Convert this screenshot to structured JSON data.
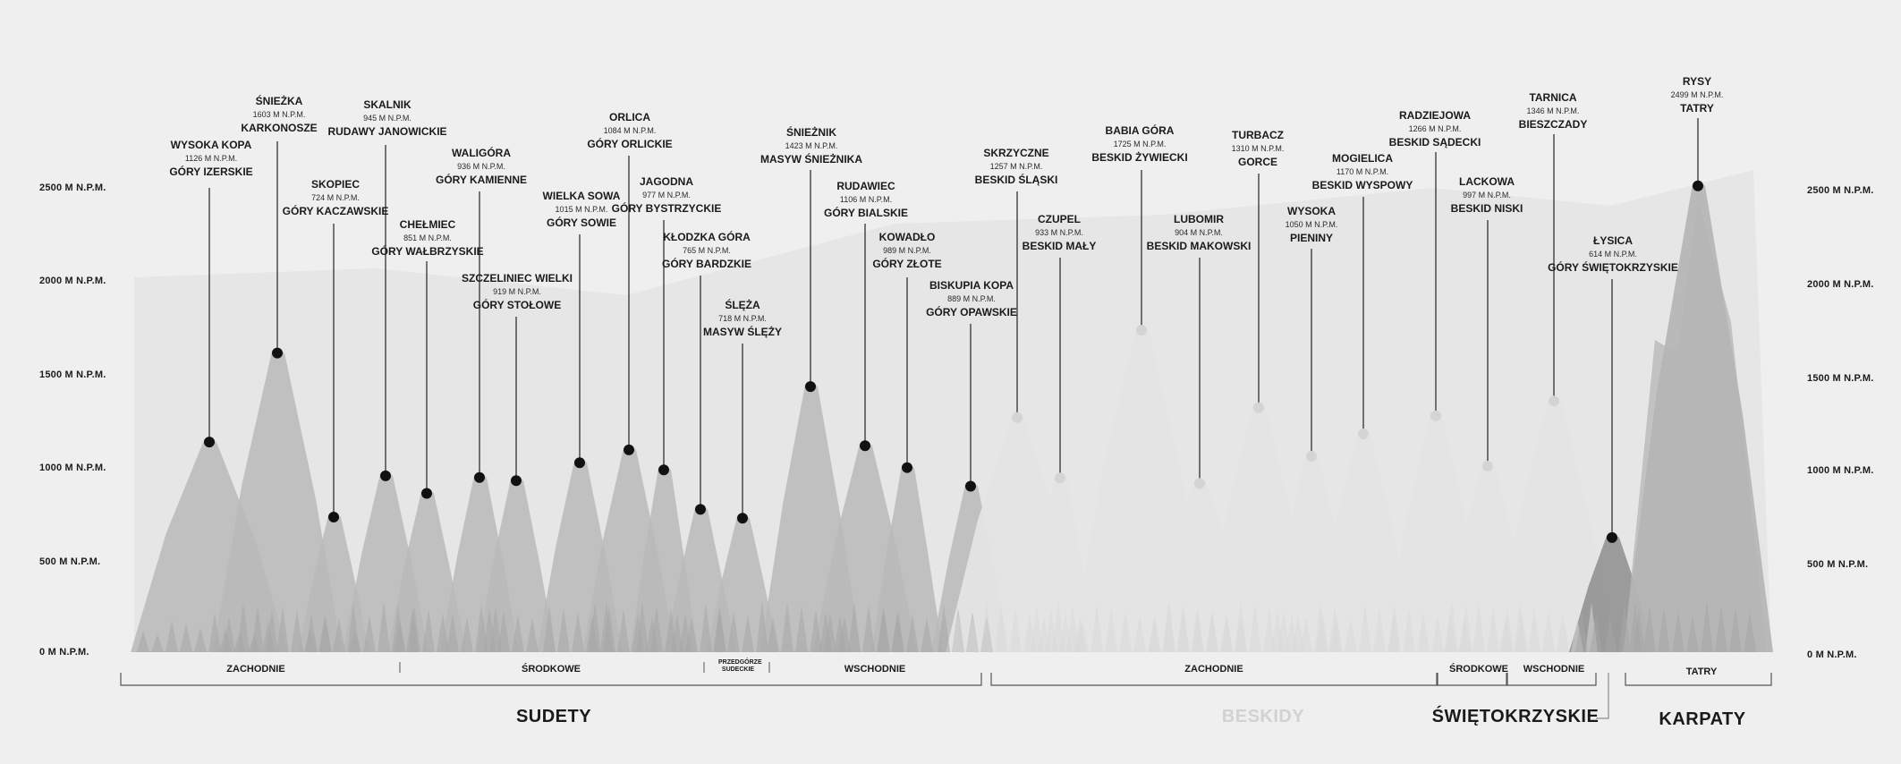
{
  "axis": {
    "labels": [
      "0 M N.P.M.",
      "500 M N.P.M.",
      "1000 M N.P.M.",
      "1500 M N.P.M.",
      "2000 M N.P.M.",
      "2500 M N.P.M."
    ],
    "values": [
      0,
      500,
      1000,
      1500,
      2000,
      2500
    ]
  },
  "peaks": [
    {
      "name": "WYSOKA KOPA",
      "elev": "1126 M N.P.M.",
      "range": "GÓRY IZERSKIE",
      "value": 1126,
      "region": "sudety"
    },
    {
      "name": "ŚNIEŻKA",
      "elev": "1603 M N.P.M.",
      "range": "KARKONOSZE",
      "value": 1603,
      "region": "sudety"
    },
    {
      "name": "SKOPIEC",
      "elev": "724 M N.P.M.",
      "range": "GÓRY KACZAWSKIE",
      "value": 724,
      "region": "sudety"
    },
    {
      "name": "SKALNIK",
      "elev": "945 M N.P.M.",
      "range": "RUDAWY JANOWICKIE",
      "value": 945,
      "region": "sudety"
    },
    {
      "name": "CHEŁMIEC",
      "elev": "851 M N.P.M.",
      "range": "GÓRY WAŁBRZYSKIE",
      "value": 851,
      "region": "sudety"
    },
    {
      "name": "WALIGÓRA",
      "elev": "936 M N.P.M.",
      "range": "GÓRY KAMIENNE",
      "value": 936,
      "region": "sudety"
    },
    {
      "name": "SZCZELINIEC WIELKI",
      "elev": "919 M N.P.M.",
      "range": "GÓRY STOŁOWE",
      "value": 919,
      "region": "sudety"
    },
    {
      "name": "WIELKA SOWA",
      "elev": "1015 M N.P.M.",
      "range": "GÓRY SOWIE",
      "value": 1015,
      "region": "sudety"
    },
    {
      "name": "ORLICA",
      "elev": "1084 M N.P.M.",
      "range": "GÓRY ORLICKIE",
      "value": 1084,
      "region": "sudety"
    },
    {
      "name": "JAGODNA",
      "elev": "977 M N.P.M.",
      "range": "GÓRY BYSTRZYCKIE",
      "value": 977,
      "region": "sudety"
    },
    {
      "name": "KŁODZKA GÓRA",
      "elev": "765 M N.P.M.",
      "range": "GÓRY BARDZKIE",
      "value": 765,
      "region": "sudety"
    },
    {
      "name": "ŚLĘŻA",
      "elev": "718 M N.P.M.",
      "range": "MASYW ŚLĘŻY",
      "value": 718,
      "region": "sudety"
    },
    {
      "name": "ŚNIEŻNIK",
      "elev": "1423 M N.P.M.",
      "range": "MASYW ŚNIEŻNIKA",
      "value": 1423,
      "region": "sudety"
    },
    {
      "name": "RUDAWIEC",
      "elev": "1106 M N.P.M.",
      "range": "GÓRY BIALSKIE",
      "value": 1106,
      "region": "sudety"
    },
    {
      "name": "KOWADŁO",
      "elev": "989 M N.P.M.",
      "range": "GÓRY ZŁOTE",
      "value": 989,
      "region": "sudety"
    },
    {
      "name": "BISKUPIA KOPA",
      "elev": "889 M N.P.M.",
      "range": "GÓRY OPAWSKIE",
      "value": 889,
      "region": "sudety"
    },
    {
      "name": "SKRZYCZNE",
      "elev": "1257 M N.P.M.",
      "range": "BESKID ŚLĄSKI",
      "value": 1257,
      "region": "beskidy"
    },
    {
      "name": "CZUPEL",
      "elev": "933 M N.P.M.",
      "range": "BESKID MAŁY",
      "value": 933,
      "region": "beskidy"
    },
    {
      "name": "BABIA GÓRA",
      "elev": "1725 M N.P.M.",
      "range": "BESKID ŻYWIECKI",
      "value": 1725,
      "region": "beskidy"
    },
    {
      "name": "LUBOMIR",
      "elev": "904 M N.P.M.",
      "range": "BESKID MAKOWSKI",
      "value": 904,
      "region": "beskidy"
    },
    {
      "name": "TURBACZ",
      "elev": "1310 M N.P.M.",
      "range": "GORCE",
      "value": 1310,
      "region": "beskidy"
    },
    {
      "name": "WYSOKA",
      "elev": "1050 M N.P.M.",
      "range": "PIENINY",
      "value": 1050,
      "region": "beskidy"
    },
    {
      "name": "MOGIELICA",
      "elev": "1170 M N.P.M.",
      "range": "BESKID WYSPOWY",
      "value": 1170,
      "region": "beskidy"
    },
    {
      "name": "RADZIEJOWA",
      "elev": "1266 M N.P.M.",
      "range": "BESKID SĄDECKI",
      "value": 1266,
      "region": "beskidy"
    },
    {
      "name": "LACKOWA",
      "elev": "997 M N.P.M.",
      "range": "BESKID NISKI",
      "value": 997,
      "region": "beskidy"
    },
    {
      "name": "TARNICA",
      "elev": "1346 M N.P.M.",
      "range": "BIESZCZADY",
      "value": 1346,
      "region": "beskidy"
    },
    {
      "name": "ŁYSICA",
      "elev": "614 M N.P.M.",
      "range": "GÓRY ŚWIĘTOKRZYSKIE",
      "value": 614,
      "region": "swietokrzyskie"
    },
    {
      "name": "RYSY",
      "elev": "2499 M N.P.M.",
      "range": "TATRY",
      "value": 2499,
      "region": "tatry"
    }
  ],
  "groups": [
    {
      "label": "ZACHODNIE"
    },
    {
      "label": "ŚRODKOWE"
    },
    {
      "label": "PRZEDGÓRZE SUDECKIE"
    },
    {
      "label": "WSCHODNIE"
    },
    {
      "label": "ZACHODNIE"
    },
    {
      "label": "ŚRODKOWE"
    },
    {
      "label": "WSCHODNIE"
    },
    {
      "label": "TATRY"
    }
  ],
  "regions": [
    {
      "label": "SUDETY"
    },
    {
      "label": "BESKIDY"
    },
    {
      "label": "ŚWIĘTOKRZYSKIE"
    },
    {
      "label": "KARPATY"
    }
  ],
  "colors": {
    "background": "#efefef",
    "sudety": "#b9b9b9",
    "beskidy": "#e4e4e4",
    "swietokrzyskie": "#8d8d8d",
    "tatry": "#b0b0b0",
    "dot_dark": "#111111",
    "dot_light": "#d4d4d4",
    "beskidy_text": "#d2d2d2"
  }
}
